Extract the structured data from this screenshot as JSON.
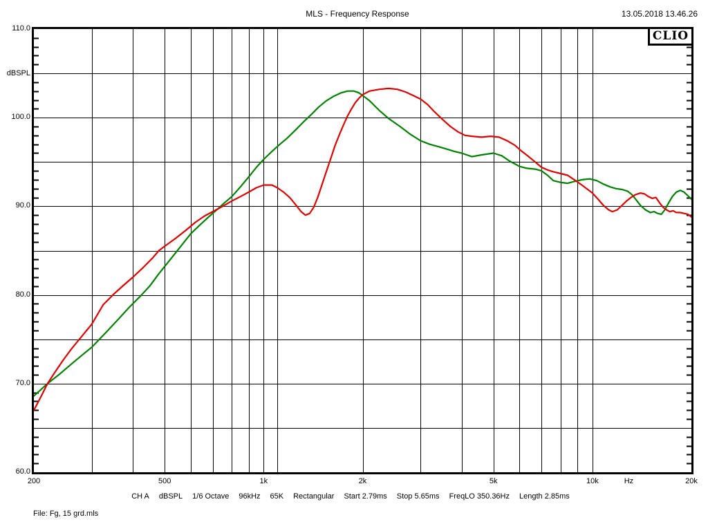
{
  "header": {
    "title": "MLS - Frequency Response",
    "datetime": "13.05.2018 13.46.26",
    "logo_text": "CLIO"
  },
  "y_axis": {
    "unit": "dBSPL",
    "labels": [
      {
        "text": "110.0",
        "db": 110
      },
      {
        "text": "100.0",
        "db": 100
      },
      {
        "text": "90.0",
        "db": 90
      },
      {
        "text": "80.0",
        "db": 80
      },
      {
        "text": "70.0",
        "db": 70
      },
      {
        "text": "60.0",
        "db": 60
      }
    ]
  },
  "x_axis": {
    "labels": [
      {
        "text": "200",
        "hz": 200
      },
      {
        "text": "500",
        "hz": 500
      },
      {
        "text": "1k",
        "hz": 1000
      },
      {
        "text": "2k",
        "hz": 2000
      },
      {
        "text": "5k",
        "hz": 5000
      },
      {
        "text": "10k",
        "hz": 10000
      },
      {
        "text": "Hz",
        "hz": 12900
      },
      {
        "text": "20k",
        "hz": 20000
      }
    ]
  },
  "status_bar": {
    "tokens": [
      "CH A",
      "dBSPL",
      "1/6 Octave",
      "96kHz",
      "65K",
      "Rectangular",
      "Start 2.79ms",
      "Stop 5.65ms",
      "FreqLO 350.36Hz",
      "Length 2.85ms"
    ]
  },
  "footer": {
    "file_label": "File: Fg, 15 grd.mls"
  },
  "colors": {
    "red_curve": "#dd0000",
    "green_curve": "#008000",
    "grid": "#000000",
    "background": "#ffffff"
  },
  "chart_data": {
    "type": "line",
    "title": "MLS - Frequency Response",
    "x_scale": "log",
    "xlabel": "Hz",
    "ylabel": "dBSPL",
    "x_range_hz": [
      200,
      20000
    ],
    "y_range_db": [
      60,
      110
    ],
    "x_gridlines_hz": [
      300,
      400,
      500,
      600,
      700,
      800,
      900,
      1000,
      1100,
      2000,
      3000,
      4000,
      5000,
      6000,
      7000,
      8000,
      9000,
      10000
    ],
    "y_gridlines_db": [
      65,
      70,
      75,
      80,
      85,
      90,
      95,
      100,
      105
    ],
    "y_minor_tick_step_db": 1,
    "legend": "none",
    "series": [
      {
        "name": "red",
        "color": "#dd0000",
        "points": [
          [
            200,
            67.0
          ],
          [
            210,
            68.5
          ],
          [
            220,
            70.0
          ],
          [
            232,
            71.3
          ],
          [
            245,
            72.6
          ],
          [
            260,
            73.9
          ],
          [
            275,
            75.0
          ],
          [
            300,
            76.7
          ],
          [
            325,
            78.9
          ],
          [
            350,
            80.1
          ],
          [
            375,
            81.1
          ],
          [
            400,
            82.0
          ],
          [
            430,
            83.1
          ],
          [
            460,
            84.2
          ],
          [
            480,
            85.0
          ],
          [
            500,
            85.5
          ],
          [
            540,
            86.4
          ],
          [
            580,
            87.3
          ],
          [
            620,
            88.2
          ],
          [
            660,
            88.9
          ],
          [
            700,
            89.4
          ],
          [
            750,
            90.0
          ],
          [
            800,
            90.6
          ],
          [
            850,
            91.1
          ],
          [
            900,
            91.6
          ],
          [
            950,
            92.1
          ],
          [
            1000,
            92.4
          ],
          [
            1060,
            92.4
          ],
          [
            1100,
            92.1
          ],
          [
            1150,
            91.6
          ],
          [
            1200,
            91.0
          ],
          [
            1250,
            90.2
          ],
          [
            1300,
            89.4
          ],
          [
            1340,
            89.0
          ],
          [
            1380,
            89.2
          ],
          [
            1420,
            89.9
          ],
          [
            1460,
            91.0
          ],
          [
            1500,
            92.3
          ],
          [
            1550,
            93.9
          ],
          [
            1600,
            95.4
          ],
          [
            1650,
            96.9
          ],
          [
            1700,
            98.1
          ],
          [
            1750,
            99.2
          ],
          [
            1800,
            100.2
          ],
          [
            1850,
            101.0
          ],
          [
            1900,
            101.7
          ],
          [
            1950,
            102.2
          ],
          [
            2000,
            102.6
          ],
          [
            2100,
            103.0
          ],
          [
            2250,
            103.2
          ],
          [
            2400,
            103.3
          ],
          [
            2550,
            103.2
          ],
          [
            2700,
            102.9
          ],
          [
            2850,
            102.5
          ],
          [
            3000,
            102.1
          ],
          [
            3150,
            101.5
          ],
          [
            3300,
            100.7
          ],
          [
            3500,
            99.8
          ],
          [
            3700,
            99.0
          ],
          [
            3900,
            98.4
          ],
          [
            4100,
            98.0
          ],
          [
            4300,
            97.9
          ],
          [
            4600,
            97.8
          ],
          [
            4900,
            97.9
          ],
          [
            5200,
            97.8
          ],
          [
            5500,
            97.4
          ],
          [
            5800,
            96.9
          ],
          [
            6100,
            96.2
          ],
          [
            6400,
            95.6
          ],
          [
            6700,
            95.0
          ],
          [
            7000,
            94.4
          ],
          [
            7300,
            94.1
          ],
          [
            7600,
            93.9
          ],
          [
            8000,
            93.7
          ],
          [
            8400,
            93.5
          ],
          [
            8800,
            93.0
          ],
          [
            9200,
            92.5
          ],
          [
            9600,
            92.0
          ],
          [
            10000,
            91.5
          ],
          [
            10400,
            90.8
          ],
          [
            10800,
            90.1
          ],
          [
            11200,
            89.6
          ],
          [
            11500,
            89.4
          ],
          [
            11900,
            89.6
          ],
          [
            12300,
            90.1
          ],
          [
            12700,
            90.6
          ],
          [
            13100,
            91.0
          ],
          [
            13500,
            91.3
          ],
          [
            14000,
            91.5
          ],
          [
            14400,
            91.4
          ],
          [
            14800,
            91.1
          ],
          [
            15200,
            90.9
          ],
          [
            15600,
            91.0
          ],
          [
            16000,
            90.4
          ],
          [
            16400,
            89.9
          ],
          [
            16800,
            89.6
          ],
          [
            17200,
            89.4
          ],
          [
            17600,
            89.5
          ],
          [
            18000,
            89.3
          ],
          [
            18500,
            89.3
          ],
          [
            19000,
            89.2
          ],
          [
            19500,
            89.1
          ],
          [
            20000,
            88.8
          ]
        ]
      },
      {
        "name": "green",
        "color": "#008000",
        "points": [
          [
            200,
            68.6
          ],
          [
            220,
            70.0
          ],
          [
            240,
            71.1
          ],
          [
            260,
            72.2
          ],
          [
            280,
            73.2
          ],
          [
            300,
            74.1
          ],
          [
            330,
            75.7
          ],
          [
            360,
            77.2
          ],
          [
            390,
            78.6
          ],
          [
            420,
            79.8
          ],
          [
            450,
            81.0
          ],
          [
            480,
            82.4
          ],
          [
            520,
            84.0
          ],
          [
            560,
            85.5
          ],
          [
            600,
            86.9
          ],
          [
            640,
            87.9
          ],
          [
            680,
            88.8
          ],
          [
            720,
            89.6
          ],
          [
            760,
            90.4
          ],
          [
            800,
            91.1
          ],
          [
            850,
            92.2
          ],
          [
            900,
            93.3
          ],
          [
            950,
            94.4
          ],
          [
            1000,
            95.3
          ],
          [
            1060,
            96.2
          ],
          [
            1120,
            97.0
          ],
          [
            1180,
            97.7
          ],
          [
            1250,
            98.6
          ],
          [
            1320,
            99.5
          ],
          [
            1400,
            100.4
          ],
          [
            1470,
            101.2
          ],
          [
            1550,
            101.9
          ],
          [
            1630,
            102.4
          ],
          [
            1720,
            102.8
          ],
          [
            1800,
            103.0
          ],
          [
            1880,
            103.0
          ],
          [
            1950,
            102.8
          ],
          [
            2000,
            102.5
          ],
          [
            2100,
            101.9
          ],
          [
            2250,
            100.8
          ],
          [
            2400,
            99.9
          ],
          [
            2600,
            99.0
          ],
          [
            2800,
            98.1
          ],
          [
            3000,
            97.4
          ],
          [
            3200,
            97.0
          ],
          [
            3500,
            96.6
          ],
          [
            3800,
            96.2
          ],
          [
            4000,
            96.0
          ],
          [
            4300,
            95.6
          ],
          [
            4600,
            95.8
          ],
          [
            5000,
            96.0
          ],
          [
            5300,
            95.7
          ],
          [
            5600,
            95.1
          ],
          [
            6000,
            94.5
          ],
          [
            6300,
            94.3
          ],
          [
            6700,
            94.2
          ],
          [
            7000,
            94.0
          ],
          [
            7300,
            93.5
          ],
          [
            7600,
            92.9
          ],
          [
            8000,
            92.7
          ],
          [
            8400,
            92.6
          ],
          [
            8800,
            92.8
          ],
          [
            9300,
            93.0
          ],
          [
            9800,
            93.1
          ],
          [
            10300,
            92.9
          ],
          [
            10800,
            92.5
          ],
          [
            11300,
            92.2
          ],
          [
            11800,
            92.0
          ],
          [
            12300,
            91.9
          ],
          [
            12800,
            91.7
          ],
          [
            13200,
            91.3
          ],
          [
            13600,
            90.7
          ],
          [
            14000,
            90.1
          ],
          [
            14500,
            89.6
          ],
          [
            15000,
            89.3
          ],
          [
            15400,
            89.4
          ],
          [
            15800,
            89.2
          ],
          [
            16200,
            89.1
          ],
          [
            16600,
            89.6
          ],
          [
            17000,
            90.3
          ],
          [
            17500,
            91.1
          ],
          [
            18000,
            91.6
          ],
          [
            18500,
            91.8
          ],
          [
            19000,
            91.6
          ],
          [
            19500,
            91.2
          ],
          [
            20000,
            90.8
          ]
        ]
      }
    ]
  }
}
